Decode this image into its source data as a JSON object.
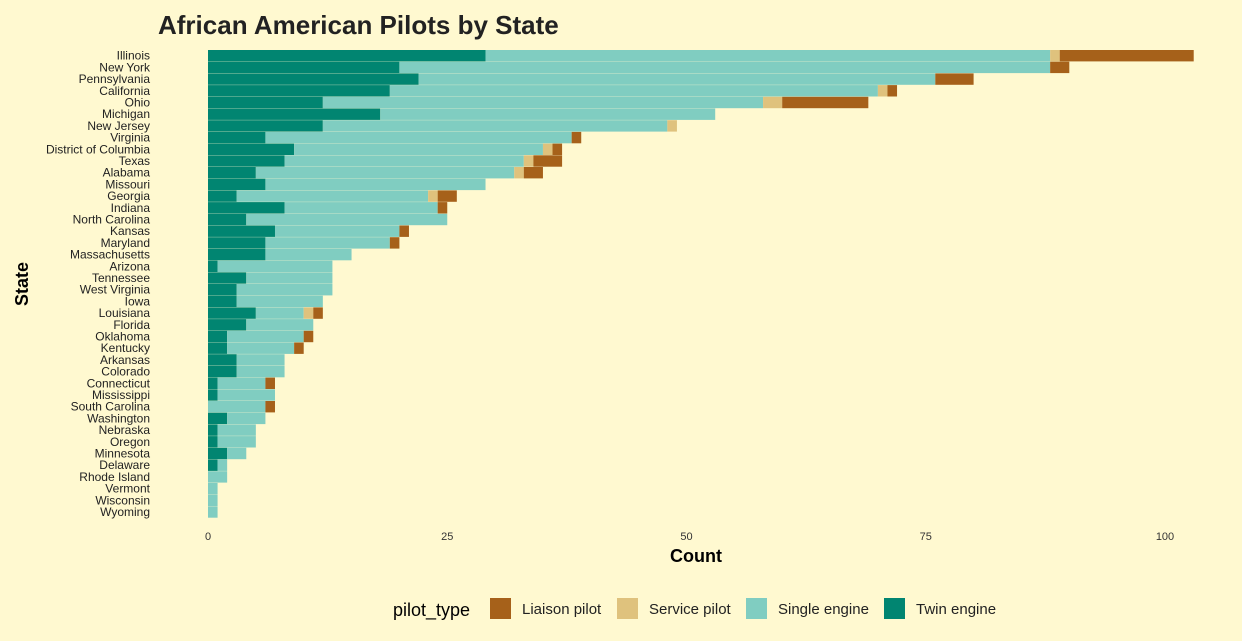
{
  "chart_data": {
    "type": "bar",
    "orientation": "horizontal",
    "stacked": true,
    "title": "African American Pilots by State",
    "xlabel": "Count",
    "ylabel": "State",
    "xlim": [
      0,
      102
    ],
    "xticks": [
      0,
      25,
      50,
      75,
      100
    ],
    "grid": false,
    "legend": {
      "title": "pilot_type",
      "position": "bottom",
      "items": [
        {
          "name": "Liaison pilot",
          "color": "#a6611a"
        },
        {
          "name": "Service pilot",
          "color": "#dfc27d"
        },
        {
          "name": "Single engine",
          "color": "#80cdc1"
        },
        {
          "name": "Twin engine",
          "color": "#018571"
        }
      ]
    },
    "categories": [
      "Illinois",
      "New York",
      "Pennsylvania",
      "California",
      "Ohio",
      "Michigan",
      "New Jersey",
      "Virginia",
      "District of Columbia",
      "Texas",
      "Alabama",
      "Missouri",
      "Georgia",
      "Indiana",
      "North Carolina",
      "Kansas",
      "Maryland",
      "Massachusetts",
      "Arizona",
      "Tennessee",
      "West Virginia",
      "Iowa",
      "Louisiana",
      "Florida",
      "Oklahoma",
      "Kentucky",
      "Arkansas",
      "Colorado",
      "Connecticut",
      "Mississippi",
      "South Carolina",
      "Washington",
      "Nebraska",
      "Oregon",
      "Minnesota",
      "Delaware",
      "Rhode Island",
      "Vermont",
      "Wisconsin",
      "Wyoming"
    ],
    "series": [
      {
        "name": "Twin engine",
        "color": "#018571",
        "values": [
          29,
          20,
          22,
          19,
          12,
          18,
          12,
          6,
          9,
          8,
          5,
          6,
          3,
          8,
          4,
          7,
          6,
          6,
          1,
          4,
          3,
          3,
          5,
          4,
          2,
          2,
          3,
          3,
          1,
          1,
          0,
          2,
          1,
          1,
          2,
          1,
          0,
          0,
          0,
          0
        ]
      },
      {
        "name": "Single engine",
        "color": "#80cdc1",
        "values": [
          59,
          68,
          54,
          51,
          46,
          35,
          36,
          32,
          26,
          25,
          27,
          23,
          20,
          16,
          21,
          13,
          13,
          9,
          12,
          9,
          10,
          9,
          5,
          7,
          8,
          7,
          5,
          5,
          5,
          6,
          6,
          4,
          4,
          4,
          2,
          1,
          2,
          1,
          1,
          1
        ]
      },
      {
        "name": "Service pilot",
        "color": "#dfc27d",
        "values": [
          1,
          0,
          0,
          1,
          2,
          0,
          1,
          0,
          1,
          1,
          1,
          0,
          1,
          0,
          0,
          0,
          0,
          0,
          0,
          0,
          0,
          0,
          1,
          0,
          0,
          0,
          0,
          0,
          0,
          0,
          0,
          0,
          0,
          0,
          0,
          0,
          0,
          0,
          0,
          0
        ]
      },
      {
        "name": "Liaison pilot",
        "color": "#a6611a",
        "values": [
          14,
          2,
          4,
          1,
          9,
          0,
          0,
          1,
          1,
          3,
          2,
          0,
          2,
          1,
          0,
          1,
          1,
          0,
          0,
          0,
          0,
          0,
          1,
          0,
          1,
          1,
          0,
          0,
          1,
          0,
          1,
          0,
          0,
          0,
          0,
          0,
          0,
          0,
          0,
          0
        ]
      }
    ]
  }
}
